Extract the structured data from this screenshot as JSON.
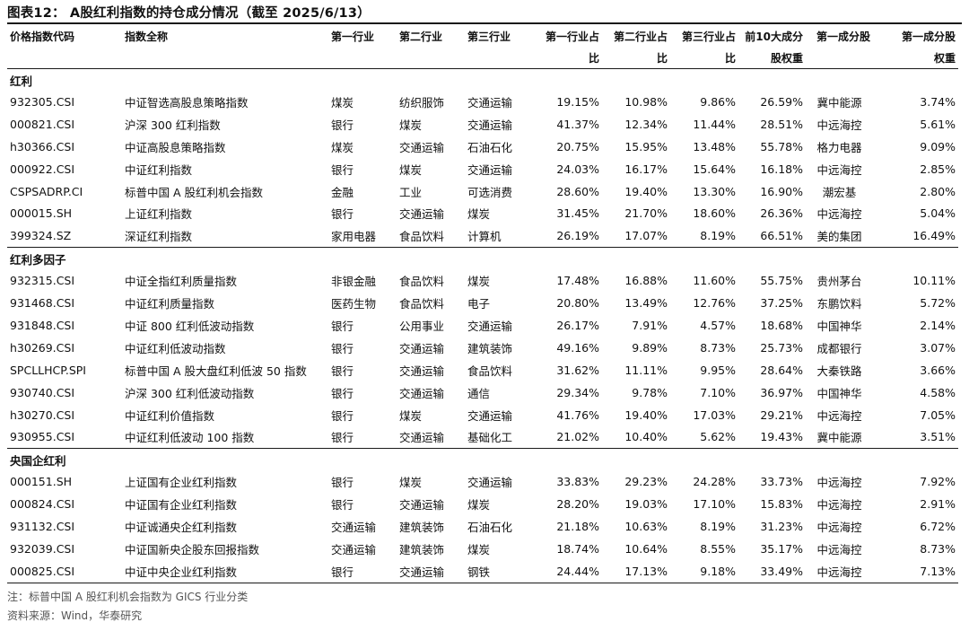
{
  "title": "图表12： A股红利指数的持仓成分情况（截至 2025/6/13）",
  "headers_top": [
    "价格指数代码",
    "指数全称",
    "第一行业",
    "第二行业",
    "第三行业",
    "第一行业占",
    "第二行业占",
    "第三行业占",
    "前10大成分",
    "第一成分股",
    "第一成分股"
  ],
  "headers_bottom": [
    "",
    "",
    "",
    "",
    "",
    "比",
    "比",
    "比",
    "股权重",
    "",
    "权重"
  ],
  "sections": [
    {
      "name": "红利",
      "rows": [
        [
          "932305.CSI",
          "中证智选高股息策略指数",
          "煤炭",
          "纺织服饰",
          "交通运输",
          "19.15%",
          "10.98%",
          "9.86%",
          "26.59%",
          "冀中能源",
          "3.74%"
        ],
        [
          "000821.CSI",
          "沪深 300 红利指数",
          "银行",
          "煤炭",
          "交通运输",
          "41.37%",
          "12.34%",
          "11.44%",
          "28.51%",
          "中远海控",
          "5.61%"
        ],
        [
          "h30366.CSI",
          "中证高股息策略指数",
          "煤炭",
          "交通运输",
          "石油石化",
          "20.75%",
          "15.95%",
          "13.48%",
          "55.78%",
          "格力电器",
          "9.09%"
        ],
        [
          "000922.CSI",
          "中证红利指数",
          "银行",
          "煤炭",
          "交通运输",
          "24.03%",
          "16.17%",
          "15.64%",
          "16.18%",
          "中远海控",
          "2.85%"
        ],
        [
          "CSPSADRP.CI",
          "标普中国 A 股红利机会指数",
          "金融",
          "工业",
          "可选消费",
          "28.60%",
          "19.40%",
          "13.30%",
          "16.90%",
          "潮宏基",
          "2.80%"
        ],
        [
          "000015.SH",
          "上证红利指数",
          "银行",
          "交通运输",
          "煤炭",
          "31.45%",
          "21.70%",
          "18.60%",
          "26.36%",
          "中远海控",
          "5.04%"
        ],
        [
          "399324.SZ",
          "深证红利指数",
          "家用电器",
          "食品饮料",
          "计算机",
          "26.19%",
          "17.07%",
          "8.19%",
          "66.51%",
          "美的集团",
          "16.49%"
        ]
      ]
    },
    {
      "name": "红利多因子",
      "rows": [
        [
          "932315.CSI",
          "中证全指红利质量指数",
          "非银金融",
          "食品饮料",
          "煤炭",
          "17.48%",
          "16.88%",
          "11.60%",
          "55.75%",
          "贵州茅台",
          "10.11%"
        ],
        [
          "931468.CSI",
          "中证红利质量指数",
          "医药生物",
          "食品饮料",
          "电子",
          "20.80%",
          "13.49%",
          "12.76%",
          "37.25%",
          "东鹏饮料",
          "5.72%"
        ],
        [
          "931848.CSI",
          "中证 800 红利低波动指数",
          "银行",
          "公用事业",
          "交通运输",
          "26.17%",
          "7.91%",
          "4.57%",
          "18.68%",
          "中国神华",
          "2.14%"
        ],
        [
          "h30269.CSI",
          "中证红利低波动指数",
          "银行",
          "交通运输",
          "建筑装饰",
          "49.16%",
          "9.89%",
          "8.73%",
          "25.73%",
          "成都银行",
          "3.07%"
        ],
        [
          "SPCLLHCP.SPI",
          "标普中国 A 股大盘红利低波 50 指数",
          "银行",
          "交通运输",
          "食品饮料",
          "31.62%",
          "11.11%",
          "9.95%",
          "28.64%",
          "大秦铁路",
          "3.66%"
        ],
        [
          "930740.CSI",
          "沪深 300 红利低波动指数",
          "银行",
          "交通运输",
          "通信",
          "29.34%",
          "9.78%",
          "7.10%",
          "36.97%",
          "中国神华",
          "4.58%"
        ],
        [
          "h30270.CSI",
          "中证红利价值指数",
          "银行",
          "煤炭",
          "交通运输",
          "41.76%",
          "19.40%",
          "17.03%",
          "29.21%",
          "中远海控",
          "7.05%"
        ],
        [
          "930955.CSI",
          "中证红利低波动 100 指数",
          "银行",
          "交通运输",
          "基础化工",
          "21.02%",
          "10.40%",
          "5.62%",
          "19.43%",
          "冀中能源",
          "3.51%"
        ]
      ]
    },
    {
      "name": "央国企红利",
      "rows": [
        [
          "000151.SH",
          "上证国有企业红利指数",
          "银行",
          "煤炭",
          "交通运输",
          "33.83%",
          "29.23%",
          "24.28%",
          "33.73%",
          "中远海控",
          "7.92%"
        ],
        [
          "000824.CSI",
          "中证国有企业红利指数",
          "银行",
          "交通运输",
          "煤炭",
          "28.20%",
          "19.03%",
          "17.10%",
          "15.83%",
          "中远海控",
          "2.91%"
        ],
        [
          "931132.CSI",
          "中证诚通央企红利指数",
          "交通运输",
          "建筑装饰",
          "石油石化",
          "21.18%",
          "10.63%",
          "8.19%",
          "31.23%",
          "中远海控",
          "6.72%"
        ],
        [
          "932039.CSI",
          "中证国新央企股东回报指数",
          "交通运输",
          "建筑装饰",
          "煤炭",
          "18.74%",
          "10.64%",
          "8.55%",
          "35.17%",
          "中远海控",
          "8.73%"
        ],
        [
          "000825.CSI",
          "中证中央企业红利指数",
          "银行",
          "交通运输",
          "钢铁",
          "24.44%",
          "17.13%",
          "9.18%",
          "33.49%",
          "中远海控",
          "7.13%"
        ]
      ]
    }
  ],
  "note": "注：标普中国 A 股红利机会指数为 GICS 行业分类",
  "source": "资料来源：Wind，华泰研究"
}
